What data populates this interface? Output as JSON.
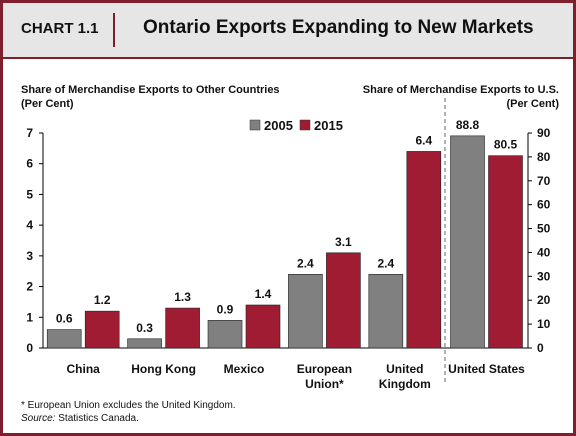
{
  "header": {
    "chart_label": "CHART 1.1",
    "title": "Ontario Exports Expanding to New Markets"
  },
  "footnote": {
    "note": "* European Union excludes the United Kingdom.",
    "source_label": "Source:",
    "source_text": " Statistics  Canada."
  },
  "colors": {
    "2005": "#808080",
    "2015": "#a01c32",
    "accent": "#7f1f2e"
  },
  "chart_data": {
    "type": "bar",
    "categories": [
      "China",
      "Hong Kong",
      "Mexico",
      "European Union*",
      "United Kingdom",
      "United States"
    ],
    "category_lines": [
      [
        "China"
      ],
      [
        "Hong Kong"
      ],
      [
        "Mexico"
      ],
      [
        "European",
        "Union*"
      ],
      [
        "United",
        "Kingdom"
      ],
      [
        "United States"
      ]
    ],
    "series": [
      {
        "name": "2005",
        "values": [
          0.6,
          0.3,
          0.9,
          2.4,
          2.4,
          88.8
        ]
      },
      {
        "name": "2015",
        "values": [
          1.2,
          1.3,
          1.4,
          3.1,
          6.4,
          80.5
        ]
      }
    ],
    "left_axis": {
      "label_lines": [
        "Share of Merchandise Exports to Other Countries",
        "(Per Cent)"
      ],
      "ylim": [
        0,
        7
      ],
      "ticks": [
        0,
        1,
        2,
        3,
        4,
        5,
        6,
        7
      ],
      "applies_to": [
        "China",
        "Hong Kong",
        "Mexico",
        "European Union*",
        "United Kingdom"
      ]
    },
    "right_axis": {
      "label_lines": [
        "Share of Merchandise Exports to U.S.",
        "(Per Cent)"
      ],
      "ylim": [
        0,
        90
      ],
      "ticks": [
        0,
        10,
        20,
        30,
        40,
        50,
        60,
        70,
        80,
        90
      ],
      "applies_to": [
        "United States"
      ]
    },
    "legend": {
      "position": "top-center",
      "entries": [
        "2005",
        "2015"
      ]
    },
    "grid": false
  }
}
